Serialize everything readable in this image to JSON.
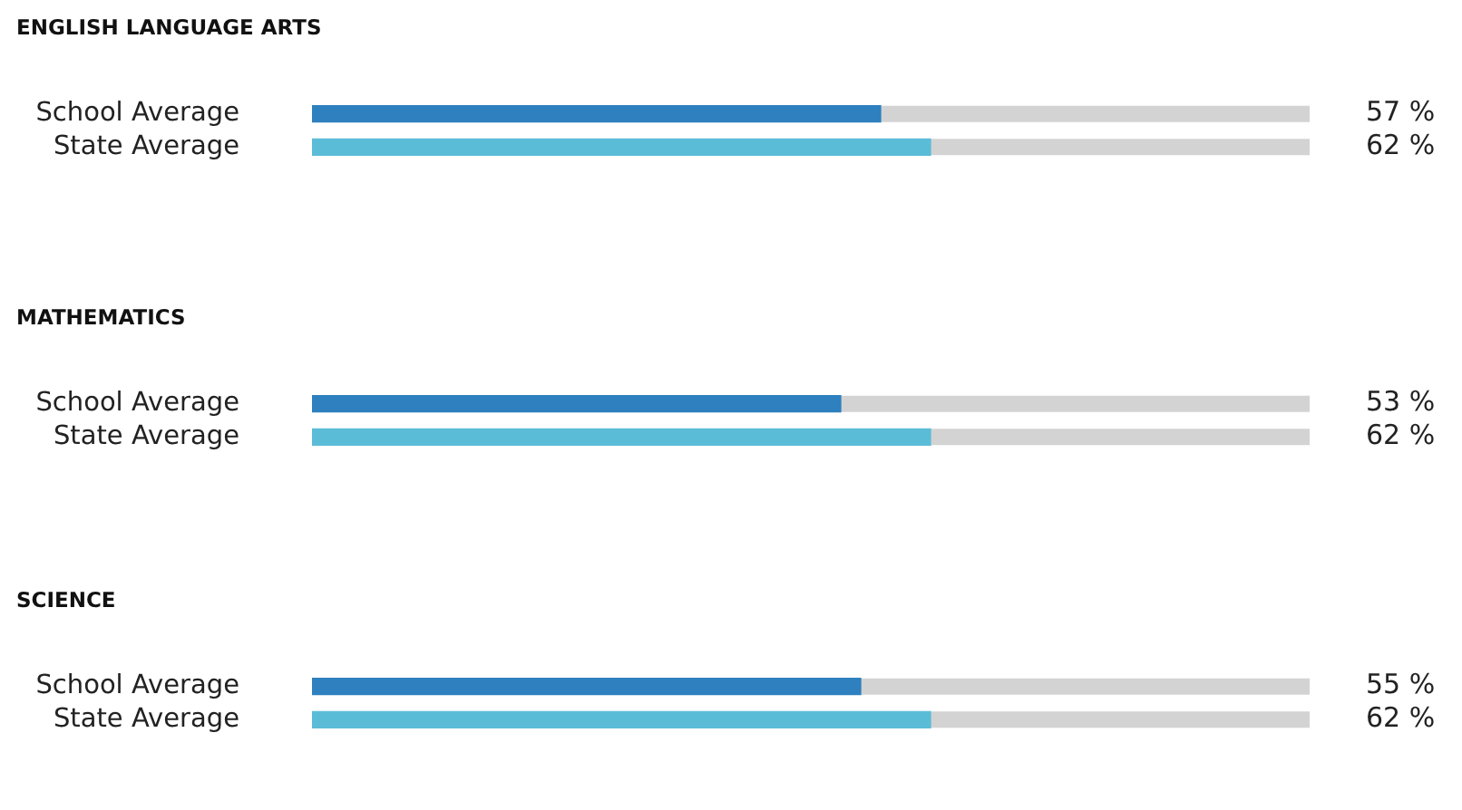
{
  "chart_data": [
    {
      "type": "bar",
      "orientation": "horizontal",
      "title": "ENGLISH LANGUAGE ARTS",
      "categories": [
        "School Average",
        "State Average"
      ],
      "values": [
        57,
        62
      ],
      "colors": [
        "#2e80bf",
        "#5bbcd8"
      ],
      "xlim": [
        0,
        100
      ],
      "value_labels": [
        "57 %",
        "62 %"
      ]
    },
    {
      "type": "bar",
      "orientation": "horizontal",
      "title": "MATHEMATICS",
      "categories": [
        "School Average",
        "State Average"
      ],
      "values": [
        53,
        62
      ],
      "colors": [
        "#2e80bf",
        "#5bbcd8"
      ],
      "xlim": [
        0,
        100
      ],
      "value_labels": [
        "53 %",
        "62 %"
      ]
    },
    {
      "type": "bar",
      "orientation": "horizontal",
      "title": "SCIENCE",
      "categories": [
        "School Average",
        "State Average"
      ],
      "values": [
        55,
        62
      ],
      "colors": [
        "#2e80bf",
        "#5bbcd8"
      ],
      "xlim": [
        0,
        100
      ],
      "value_labels": [
        "55 %",
        "62 %"
      ]
    }
  ]
}
